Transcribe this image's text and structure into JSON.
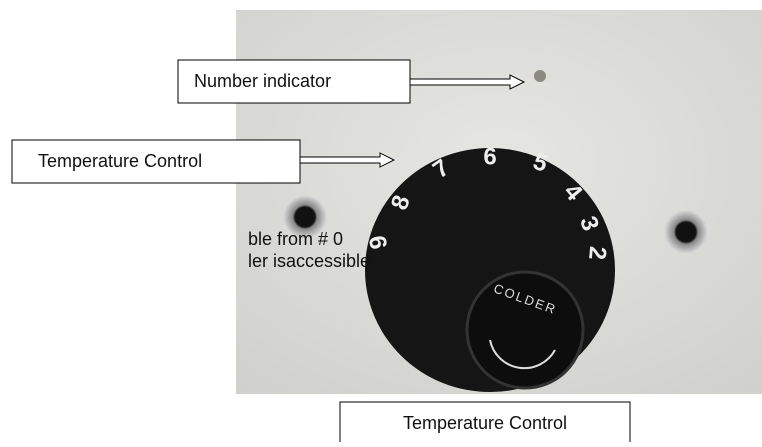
{
  "callouts": {
    "number_indicator": "Number indicator",
    "temperature_control": "Temperature Control"
  },
  "side_text": [
    "ble from # 0",
    "ler isaccessible"
  ],
  "dial": {
    "numbers": [
      "9",
      "8",
      "7",
      "6",
      "5",
      "4",
      "3",
      "2"
    ],
    "knob_label": "COLDER"
  },
  "caption": "Temperature Control"
}
